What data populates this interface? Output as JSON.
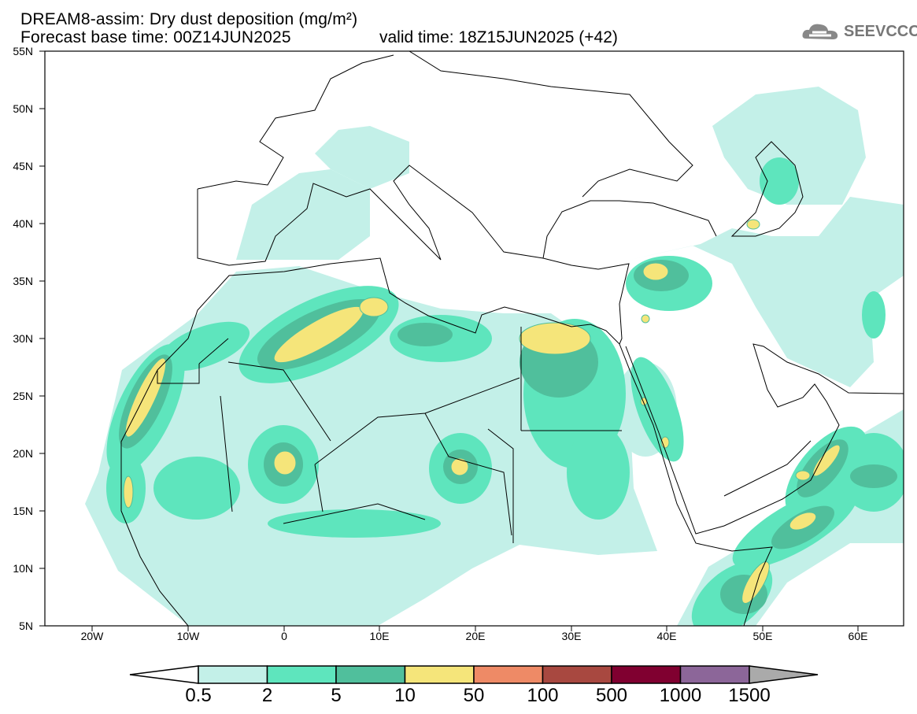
{
  "header": {
    "title": "DREAM8-assim: Dry dust deposition (mg/m²)",
    "base_time": "Forecast base time: 00Z14JUN2025",
    "valid_time": "valid time: 18Z15JUN2025 (+42)",
    "logo_text": "SEEVCCC",
    "logo_icon": "cloud-icon"
  },
  "axes": {
    "lat_labels": [
      "55N",
      "50N",
      "45N",
      "40N",
      "35N",
      "30N",
      "25N",
      "20N",
      "15N",
      "10N",
      "5N"
    ],
    "lon_labels": [
      "20W",
      "10W",
      "0",
      "10E",
      "20E",
      "30E",
      "40E",
      "50E",
      "60E"
    ]
  },
  "colorbar": {
    "levels": [
      "0.5",
      "2",
      "5",
      "10",
      "50",
      "100",
      "500",
      "1000",
      "1500"
    ],
    "colors": [
      "#c3f0e8",
      "#5ee5bd",
      "#50bf9c",
      "#f5e57a",
      "#ee8a66",
      "#a84840",
      "#800030",
      "#8c6699"
    ],
    "under_color": "#ffffff",
    "over_color": "#aaaaaa"
  }
}
